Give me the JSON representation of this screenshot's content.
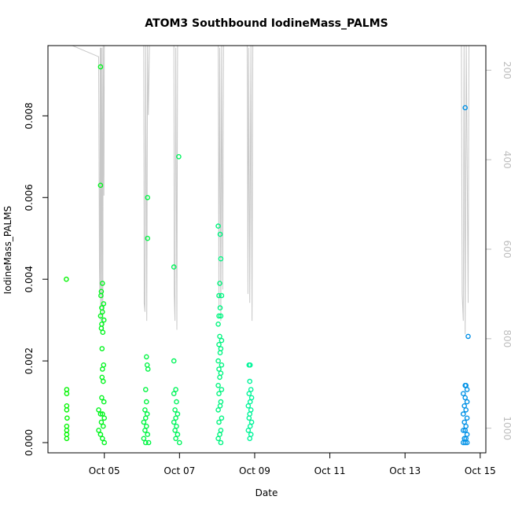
{
  "chart_data": {
    "type": "scatter",
    "title": "ATOM3 Southbound IodineMass_PALMS",
    "xlabel": "Date",
    "ylabel": "IodineMass_PALMS",
    "x_unit": "day of October 2017 (fractional)",
    "xlim": [
      3.5,
      15.15
    ],
    "ylim": [
      -0.00025,
      0.00972
    ],
    "x_ticks": [
      {
        "value": 5,
        "label": "Oct 05"
      },
      {
        "value": 7,
        "label": "Oct 07"
      },
      {
        "value": 9,
        "label": "Oct 09"
      },
      {
        "value": 11,
        "label": "Oct 11"
      },
      {
        "value": 13,
        "label": "Oct 13"
      },
      {
        "value": 15,
        "label": "Oct 15"
      }
    ],
    "y_ticks": [
      {
        "value": 0.0,
        "label": "0.000"
      },
      {
        "value": 0.002,
        "label": "0.002"
      },
      {
        "value": 0.004,
        "label": "0.004"
      },
      {
        "value": 0.006,
        "label": "0.006"
      },
      {
        "value": 0.008,
        "label": "0.008"
      }
    ],
    "right_axis": {
      "label": "",
      "lim": [
        1055,
        145
      ],
      "ticks": [
        {
          "value": 200,
          "label": "200"
        },
        {
          "value": 400,
          "label": "400"
        },
        {
          "value": 600,
          "label": "600"
        },
        {
          "value": 800,
          "label": "800"
        },
        {
          "value": 1000,
          "label": "1000"
        }
      ],
      "color": "#bebebe"
    },
    "grid": false,
    "legend": "none",
    "altitude_profile": [
      [
        4.0,
        145
      ],
      [
        4.15,
        145
      ],
      [
        4.85,
        170
      ],
      [
        4.87,
        640
      ],
      [
        4.88,
        700
      ],
      [
        4.89,
        150
      ],
      [
        4.9,
        760
      ],
      [
        4.91,
        150
      ],
      [
        4.93,
        720
      ],
      [
        4.94,
        150
      ],
      [
        4.96,
        780
      ],
      [
        4.97,
        145
      ],
      [
        4.99,
        480
      ],
      [
        5.0,
        145
      ],
      [
        6.05,
        145
      ],
      [
        6.06,
        720
      ],
      [
        6.08,
        740
      ],
      [
        6.1,
        145
      ],
      [
        6.13,
        760
      ],
      [
        6.15,
        145
      ],
      [
        6.17,
        300
      ],
      [
        6.2,
        145
      ],
      [
        6.85,
        145
      ],
      [
        6.86,
        700
      ],
      [
        6.88,
        760
      ],
      [
        6.9,
        150
      ],
      [
        6.93,
        780
      ],
      [
        6.95,
        145
      ],
      [
        7.0,
        145
      ],
      [
        8.03,
        145
      ],
      [
        8.05,
        730
      ],
      [
        8.07,
        150
      ],
      [
        8.1,
        760
      ],
      [
        8.12,
        145
      ],
      [
        8.15,
        690
      ],
      [
        8.17,
        145
      ],
      [
        8.8,
        145
      ],
      [
        8.82,
        700
      ],
      [
        8.84,
        150
      ],
      [
        8.87,
        720
      ],
      [
        8.9,
        145
      ],
      [
        8.93,
        760
      ],
      [
        8.95,
        145
      ],
      [
        14.5,
        145
      ],
      [
        14.52,
        700
      ],
      [
        14.55,
        760
      ],
      [
        14.57,
        145
      ],
      [
        14.6,
        790
      ],
      [
        14.63,
        145
      ],
      [
        14.68,
        720
      ],
      [
        14.7,
        145
      ]
    ],
    "series_points": [
      [
        3.99,
        0.004
      ],
      [
        4.0,
        0.0013
      ],
      [
        4.0,
        0.0012
      ],
      [
        4.0,
        0.0009
      ],
      [
        4.0,
        0.0008
      ],
      [
        4.01,
        0.0006
      ],
      [
        4.0,
        0.0004
      ],
      [
        4.0,
        0.0003
      ],
      [
        4.0,
        0.0002
      ],
      [
        4.0,
        0.0001
      ],
      [
        4.9,
        0.0092
      ],
      [
        4.9,
        0.0063
      ],
      [
        4.95,
        0.0039
      ],
      [
        4.92,
        0.0037
      ],
      [
        4.91,
        0.0036
      ],
      [
        4.98,
        0.0034
      ],
      [
        4.93,
        0.0033
      ],
      [
        4.95,
        0.0032
      ],
      [
        4.9,
        0.0031
      ],
      [
        4.99,
        0.003
      ],
      [
        4.93,
        0.0029
      ],
      [
        4.92,
        0.0028
      ],
      [
        4.96,
        0.0027
      ],
      [
        4.94,
        0.0023
      ],
      [
        4.98,
        0.0019
      ],
      [
        4.95,
        0.0018
      ],
      [
        4.94,
        0.0016
      ],
      [
        4.97,
        0.0015
      ],
      [
        4.93,
        0.0011
      ],
      [
        4.99,
        0.001
      ],
      [
        4.85,
        0.0008
      ],
      [
        4.9,
        0.0007
      ],
      [
        4.95,
        0.0007
      ],
      [
        5.0,
        0.0006
      ],
      [
        4.92,
        0.0005
      ],
      [
        4.97,
        0.0004
      ],
      [
        4.85,
        0.0003
      ],
      [
        4.9,
        0.0002
      ],
      [
        4.95,
        0.0001
      ],
      [
        5.0,
        0.0
      ],
      [
        6.15,
        0.006
      ],
      [
        6.15,
        0.005
      ],
      [
        6.12,
        0.0021
      ],
      [
        6.14,
        0.0019
      ],
      [
        6.16,
        0.0018
      ],
      [
        6.1,
        0.0013
      ],
      [
        6.12,
        0.001
      ],
      [
        6.08,
        0.0008
      ],
      [
        6.14,
        0.0007
      ],
      [
        6.1,
        0.0006
      ],
      [
        6.05,
        0.0005
      ],
      [
        6.12,
        0.0004
      ],
      [
        6.08,
        0.0003
      ],
      [
        6.15,
        0.0002
      ],
      [
        6.05,
        0.0001
      ],
      [
        6.1,
        0.0
      ],
      [
        6.18,
        0.0
      ],
      [
        6.98,
        0.007
      ],
      [
        6.85,
        0.0043
      ],
      [
        6.85,
        0.002
      ],
      [
        6.9,
        0.0013
      ],
      [
        6.85,
        0.0012
      ],
      [
        6.92,
        0.001
      ],
      [
        6.88,
        0.0008
      ],
      [
        6.95,
        0.0007
      ],
      [
        6.9,
        0.0006
      ],
      [
        6.85,
        0.0005
      ],
      [
        6.92,
        0.0004
      ],
      [
        6.88,
        0.0003
      ],
      [
        6.95,
        0.0002
      ],
      [
        6.9,
        0.0001
      ],
      [
        7.0,
        0.0
      ],
      [
        8.03,
        0.0053
      ],
      [
        8.08,
        0.0051
      ],
      [
        8.1,
        0.0045
      ],
      [
        8.07,
        0.0039
      ],
      [
        8.05,
        0.0036
      ],
      [
        8.12,
        0.0036
      ],
      [
        8.08,
        0.0033
      ],
      [
        8.05,
        0.0031
      ],
      [
        8.1,
        0.0031
      ],
      [
        8.03,
        0.0029
      ],
      [
        8.07,
        0.0026
      ],
      [
        8.12,
        0.0025
      ],
      [
        8.05,
        0.0024
      ],
      [
        8.1,
        0.0023
      ],
      [
        8.08,
        0.0022
      ],
      [
        8.03,
        0.002
      ],
      [
        8.12,
        0.0019
      ],
      [
        8.05,
        0.0018
      ],
      [
        8.1,
        0.0017
      ],
      [
        8.07,
        0.0016
      ],
      [
        8.03,
        0.0014
      ],
      [
        8.12,
        0.0013
      ],
      [
        8.05,
        0.0012
      ],
      [
        8.1,
        0.001
      ],
      [
        8.08,
        0.0009
      ],
      [
        8.03,
        0.0008
      ],
      [
        8.12,
        0.0006
      ],
      [
        8.05,
        0.0005
      ],
      [
        8.1,
        0.0003
      ],
      [
        8.07,
        0.0002
      ],
      [
        8.03,
        0.0001
      ],
      [
        8.1,
        0.0
      ],
      [
        8.85,
        0.0019
      ],
      [
        8.88,
        0.0019
      ],
      [
        8.87,
        0.0015
      ],
      [
        8.9,
        0.0013
      ],
      [
        8.85,
        0.0012
      ],
      [
        8.92,
        0.0011
      ],
      [
        8.88,
        0.001
      ],
      [
        8.83,
        0.0009
      ],
      [
        8.9,
        0.0008
      ],
      [
        8.87,
        0.0007
      ],
      [
        8.85,
        0.0006
      ],
      [
        8.92,
        0.0005
      ],
      [
        8.88,
        0.0004
      ],
      [
        8.83,
        0.0003
      ],
      [
        8.9,
        0.0002
      ],
      [
        8.87,
        0.0001
      ],
      [
        14.6,
        0.0082
      ],
      [
        14.68,
        0.0026
      ],
      [
        14.6,
        0.0014
      ],
      [
        14.62,
        0.0014
      ],
      [
        14.65,
        0.0013
      ],
      [
        14.55,
        0.0012
      ],
      [
        14.6,
        0.0011
      ],
      [
        14.65,
        0.001
      ],
      [
        14.58,
        0.0009
      ],
      [
        14.62,
        0.0008
      ],
      [
        14.55,
        0.0007
      ],
      [
        14.65,
        0.0006
      ],
      [
        14.58,
        0.0005
      ],
      [
        14.62,
        0.0004
      ],
      [
        14.55,
        0.0003
      ],
      [
        14.6,
        0.0003
      ],
      [
        14.65,
        0.0002
      ],
      [
        14.58,
        0.0001
      ],
      [
        14.62,
        0.0001
      ],
      [
        14.55,
        0.0
      ],
      [
        14.6,
        0.0
      ],
      [
        14.65,
        0.0
      ]
    ],
    "color_scale": "rainbow by time: green (Oct 04) to cyan (Oct 08) to blue (Oct 15)"
  }
}
